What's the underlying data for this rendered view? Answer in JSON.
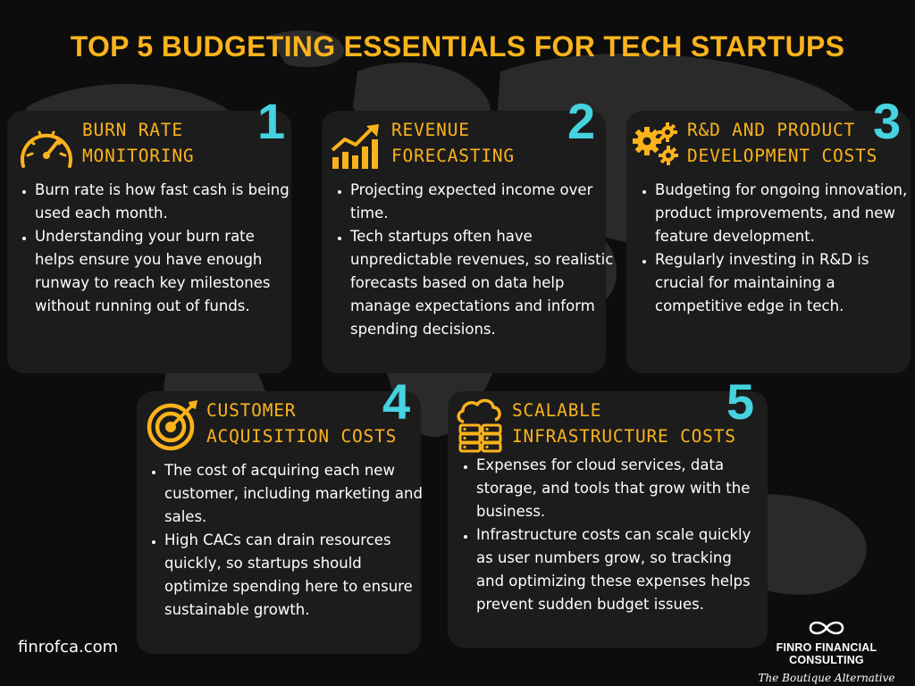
{
  "title": "TOP 5 BUDGETING ESSENTIALS FOR TECH STARTUPS",
  "colors": {
    "accent": "#fbb31c",
    "number": "#45d3e0",
    "card": "#1c1c1c",
    "background": "#0d0d0d"
  },
  "cards": [
    {
      "number": "1",
      "icon": "speedometer-icon",
      "title_lines": [
        "BURN RATE",
        "MONITORING"
      ],
      "bullets": [
        "Burn rate is how fast cash is being used each month.",
        "Understanding your burn rate helps ensure you have enough runway to reach key milestones without running out of funds."
      ]
    },
    {
      "number": "2",
      "icon": "growth-chart-icon",
      "title_lines": [
        "REVENUE",
        "FORECASTING"
      ],
      "bullets": [
        "Projecting expected income over time.",
        "Tech startups often have unpredictable revenues, so realistic forecasts based on data help manage expectations and inform spending decisions."
      ]
    },
    {
      "number": "3",
      "icon": "gears-icon",
      "title_lines": [
        "R&D AND PRODUCT",
        "DEVELOPMENT COSTS"
      ],
      "bullets": [
        "Budgeting for ongoing innovation, product improvements, and new feature development.",
        "Regularly investing in R&D is crucial for maintaining a competitive edge in tech."
      ]
    },
    {
      "number": "4",
      "icon": "target-icon",
      "title_lines": [
        "CUSTOMER",
        "ACQUISITION COSTS"
      ],
      "bullets": [
        "The cost of acquiring each new customer, including marketing and sales.",
        "High CACs can drain resources quickly, so startups should optimize spending here to ensure sustainable growth."
      ]
    },
    {
      "number": "5",
      "icon": "cloud-server-icon",
      "title_lines": [
        "SCALABLE",
        "INFRASTRUCTURE COSTS"
      ],
      "bullets": [
        "Expenses for cloud services, data storage, and tools that grow with the business.",
        "Infrastructure costs can scale quickly as user numbers grow, so tracking and optimizing these expenses helps prevent sudden budget issues."
      ]
    }
  ],
  "footer": {
    "url": "finrofca.com",
    "brand_name": "FINRO FINANCIAL CONSULTING",
    "tagline": "The Boutique Alternative",
    "logo_icon": "infinity-icon"
  }
}
